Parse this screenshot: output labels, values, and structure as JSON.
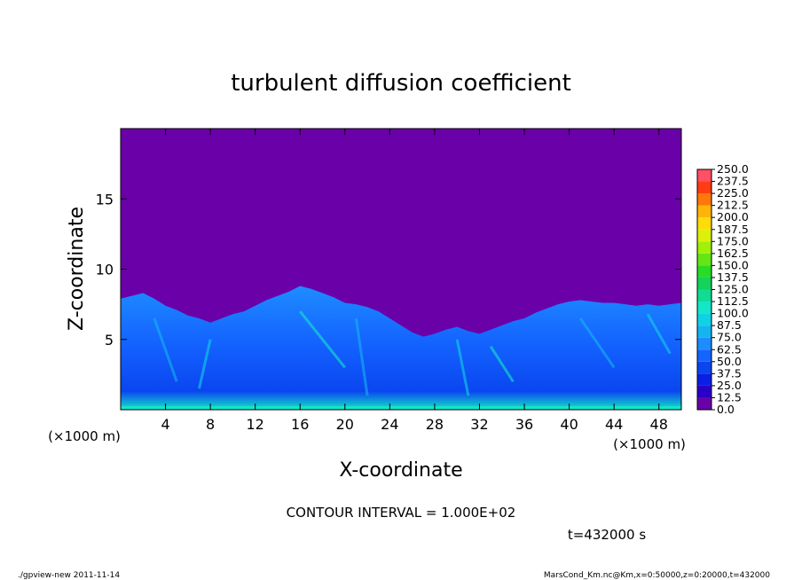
{
  "chart_data": {
    "type": "heatmap",
    "title": "turbulent diffusion coefficient",
    "xlabel": "X-coordinate",
    "ylabel": "Z-coordinate",
    "x_unit": "(×1000 m)",
    "x_ticks": [
      4,
      8,
      12,
      16,
      20,
      24,
      28,
      32,
      36,
      40,
      44,
      48
    ],
    "y_ticks": [
      5,
      10,
      15
    ],
    "xlim": [
      0,
      50
    ],
    "ylim": [
      0,
      20
    ],
    "colorbar": {
      "levels": [
        "0.0",
        "12.5",
        "25.0",
        "37.5",
        "50.0",
        "62.5",
        "75.0",
        "87.5",
        "100.0",
        "112.5",
        "125.0",
        "137.5",
        "150.0",
        "162.5",
        "175.0",
        "187.5",
        "200.0",
        "212.5",
        "225.0",
        "237.5",
        "250.0"
      ],
      "colors": [
        "#6a00a8",
        "#2a00c8",
        "#0a1ee6",
        "#0a46f0",
        "#1464ff",
        "#1e8cff",
        "#14b4f0",
        "#10d2e6",
        "#14e6c8",
        "#10dc96",
        "#14d25a",
        "#28dc28",
        "#64e614",
        "#a0f00a",
        "#dcf00a",
        "#ffdc0a",
        "#ffb40a",
        "#ff780a",
        "#ff3c14",
        "#ff5064"
      ]
    },
    "interface_profile_z": [
      [
        0,
        7.9
      ],
      [
        1,
        8.1
      ],
      [
        2,
        8.3
      ],
      [
        3,
        7.9
      ],
      [
        4,
        7.4
      ],
      [
        5,
        7.1
      ],
      [
        6,
        6.7
      ],
      [
        7,
        6.5
      ],
      [
        8,
        6.2
      ],
      [
        9,
        6.5
      ],
      [
        10,
        6.8
      ],
      [
        11,
        7.0
      ],
      [
        12,
        7.4
      ],
      [
        13,
        7.8
      ],
      [
        14,
        8.1
      ],
      [
        15,
        8.4
      ],
      [
        16,
        8.8
      ],
      [
        17,
        8.6
      ],
      [
        18,
        8.3
      ],
      [
        19,
        8.0
      ],
      [
        20,
        7.6
      ],
      [
        21,
        7.5
      ],
      [
        22,
        7.3
      ],
      [
        23,
        7.0
      ],
      [
        24,
        6.5
      ],
      [
        25,
        6.0
      ],
      [
        26,
        5.5
      ],
      [
        27,
        5.2
      ],
      [
        28,
        5.4
      ],
      [
        29,
        5.7
      ],
      [
        30,
        5.9
      ],
      [
        31,
        5.6
      ],
      [
        32,
        5.4
      ],
      [
        33,
        5.7
      ],
      [
        34,
        6.0
      ],
      [
        35,
        6.3
      ],
      [
        36,
        6.5
      ],
      [
        37,
        6.9
      ],
      [
        38,
        7.2
      ],
      [
        39,
        7.5
      ],
      [
        40,
        7.7
      ],
      [
        41,
        7.8
      ],
      [
        42,
        7.7
      ],
      [
        43,
        7.6
      ],
      [
        44,
        7.6
      ],
      [
        45,
        7.5
      ],
      [
        46,
        7.4
      ],
      [
        47,
        7.5
      ],
      [
        48,
        7.4
      ],
      [
        49,
        7.5
      ],
      [
        50,
        7.6
      ]
    ],
    "contour_interval_text": "CONTOUR INTERVAL = 1.000E+02",
    "time_text": "t=432000 s"
  },
  "footer": {
    "left": "./gpview-new   2011-11-14",
    "right": "MarsCond_Km.nc@Km,x=0:50000,z=0:20000,t=432000"
  }
}
